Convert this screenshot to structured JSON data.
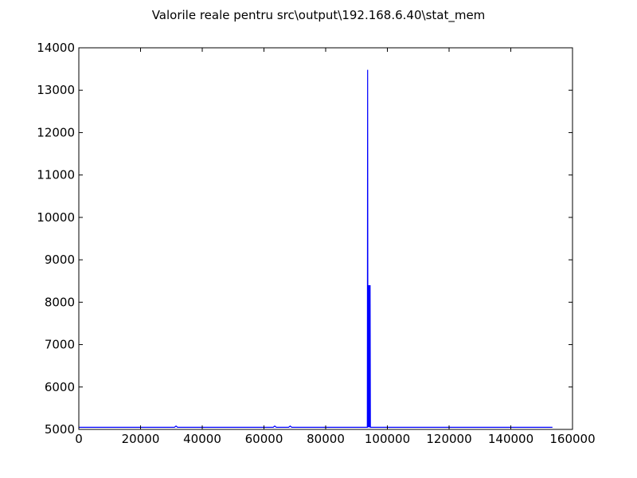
{
  "chart_data": {
    "type": "line",
    "title": "Valorile reale pentru src\\output\\192.168.6.40\\stat_mem",
    "xlabel": "",
    "ylabel": "",
    "xlim": [
      0,
      160000
    ],
    "ylim": [
      5000,
      14000
    ],
    "x_ticks": [
      0,
      20000,
      40000,
      60000,
      80000,
      100000,
      120000,
      140000,
      160000
    ],
    "y_ticks": [
      5000,
      6000,
      7000,
      8000,
      9000,
      10000,
      11000,
      12000,
      13000,
      14000
    ],
    "grid": false,
    "legend": "none",
    "line_color": "#0000ff",
    "series": [
      {
        "x": [
          0,
          31000,
          31500,
          32000,
          63000,
          63500,
          64000,
          68000,
          68500,
          69000,
          93500,
          93600,
          93700,
          93800,
          93900,
          94000,
          94100,
          94200,
          94300,
          94400,
          94500,
          153500
        ],
        "y": [
          5050,
          5050,
          5080,
          5050,
          5050,
          5080,
          5050,
          5050,
          5080,
          5050,
          5050,
          13480,
          5050,
          8400,
          5050,
          8400,
          5050,
          8400,
          5050,
          8400,
          5050,
          5050
        ]
      }
    ]
  }
}
